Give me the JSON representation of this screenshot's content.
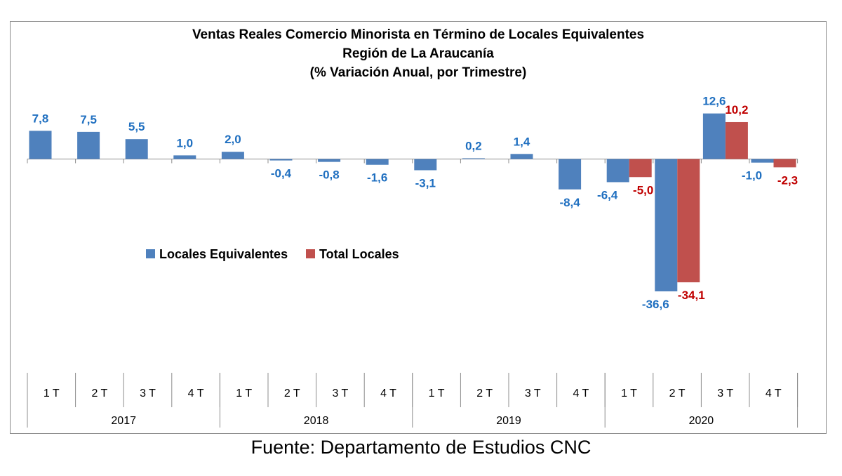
{
  "chart_data": {
    "type": "bar",
    "title_lines": [
      "Ventas Reales Comercio Minorista  en Término de Locales Equivalentes",
      "Región de La Araucanía",
      "(% Variación Anual, por Trimestre)"
    ],
    "categories": [
      "1 T",
      "2 T",
      "3 T",
      "4 T",
      "1 T",
      "2 T",
      "3 T",
      "4 T",
      "1 T",
      "2 T",
      "3 T",
      "4 T",
      "1 T",
      "2 T",
      "3 T",
      "4 T"
    ],
    "groups": [
      {
        "label": "2017",
        "span": 4
      },
      {
        "label": "2018",
        "span": 4
      },
      {
        "label": "2019",
        "span": 4
      },
      {
        "label": "2020",
        "span": 4
      }
    ],
    "series": [
      {
        "name": "Locales Equivalentes",
        "color": "#4f81bd",
        "label_color": "#1f6fc0",
        "values": [
          7.8,
          7.5,
          5.5,
          1.0,
          2.0,
          -0.4,
          -0.8,
          -1.6,
          -3.1,
          0.2,
          1.4,
          -8.4,
          -6.4,
          -36.6,
          12.6,
          -1.0
        ],
        "labels": [
          "7,8",
          "7,5",
          "5,5",
          "1,0",
          "2,0",
          "-0,4",
          "-0,8",
          "-1,6",
          "-3,1",
          "0,2",
          "1,4",
          "-8,4",
          "-6,4",
          "-36,6",
          "12,6",
          "-1,0"
        ]
      },
      {
        "name": "Total Locales",
        "color": "#c0504d",
        "label_color": "#c00000",
        "values": [
          null,
          null,
          null,
          null,
          null,
          null,
          null,
          null,
          null,
          null,
          null,
          null,
          -5.0,
          -34.1,
          10.2,
          -2.3
        ],
        "labels": [
          null,
          null,
          null,
          null,
          null,
          null,
          null,
          null,
          null,
          null,
          null,
          null,
          "-5,0",
          "-34,1",
          "10,2",
          "-2,3"
        ]
      }
    ],
    "legend_position": "left-middle",
    "grid": false
  },
  "source_text": "Fuente: Departamento de Estudios CNC"
}
